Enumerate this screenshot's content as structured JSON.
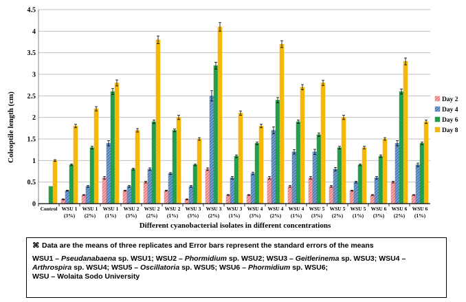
{
  "chart_data": {
    "type": "bar",
    "xlabel": "Different cyanobacterial isolates in different concentrations",
    "ylabel": "Coleoptile length (cm)",
    "ylim": [
      0,
      4.5
    ],
    "yticks": [
      "0",
      "0.5",
      "1",
      "1.5",
      "2",
      "2.5",
      "3",
      "3.5",
      "4",
      "4.5"
    ],
    "categories": [
      [
        "Control"
      ],
      [
        "WSU 1",
        "(3%)"
      ],
      [
        "WSU 1",
        "(2%)"
      ],
      [
        "WSU 1",
        "(1%)"
      ],
      [
        "WSU 2",
        "(3%)"
      ],
      [
        "WSU 2",
        "(2%)"
      ],
      [
        "WSU 2",
        "(1%)"
      ],
      [
        "WSU 3",
        "(3%)"
      ],
      [
        "WSU 3",
        "(2%)"
      ],
      [
        "WSU 3",
        "(1%)"
      ],
      [
        "WSU 4",
        "(3%)"
      ],
      [
        "WSU 4",
        "(2%)"
      ],
      [
        "WSU 4",
        "(1%)"
      ],
      [
        "WSU 5",
        "(3%)"
      ],
      [
        "WSU 5",
        "(2%)"
      ],
      [
        "WSU 5",
        "(1%)"
      ],
      [
        "WSU 6",
        "(3%)"
      ],
      [
        "WSU 6",
        "(2%)"
      ],
      [
        "WSU 6",
        "(1%)"
      ]
    ],
    "series": [
      {
        "name": "Day 2",
        "color": "#f08080",
        "values": [
          0,
          0.1,
          0.2,
          0.6,
          0.3,
          0.5,
          0.3,
          0.1,
          0.8,
          0.2,
          0.2,
          0.6,
          0.4,
          0.6,
          0.4,
          0.3,
          0.2,
          0.5,
          0.2
        ],
        "errors": [
          0,
          0.01,
          0.01,
          0.03,
          0.01,
          0.02,
          0.01,
          0.01,
          0.03,
          0.01,
          0.01,
          0.03,
          0.02,
          0.03,
          0.02,
          0.01,
          0.01,
          0.02,
          0.01
        ]
      },
      {
        "name": "Day 4",
        "color": "#4f81bd",
        "values": [
          0,
          0.3,
          0.4,
          1.4,
          0.4,
          0.8,
          0.7,
          0.4,
          2.5,
          0.6,
          0.7,
          1.7,
          1.2,
          1.2,
          0.8,
          0.5,
          0.6,
          1.4,
          0.9
        ],
        "errors": [
          0,
          0.01,
          0.02,
          0.06,
          0.02,
          0.03,
          0.02,
          0.02,
          0.12,
          0.03,
          0.03,
          0.08,
          0.05,
          0.06,
          0.04,
          0.02,
          0.03,
          0.06,
          0.04
        ]
      },
      {
        "name": "Day 6",
        "color": "#22a550",
        "values": [
          0.4,
          0.9,
          1.3,
          2.6,
          0.8,
          1.9,
          1.7,
          0.9,
          3.2,
          1.1,
          1.4,
          2.4,
          1.9,
          1.6,
          1.3,
          0.9,
          1.1,
          2.6,
          1.4
        ],
        "errors": [
          0,
          0.02,
          0.03,
          0.07,
          0.02,
          0.04,
          0.03,
          0.02,
          0.08,
          0.03,
          0.03,
          0.06,
          0.04,
          0.04,
          0.03,
          0.02,
          0.03,
          0.06,
          0.03
        ]
      },
      {
        "name": "Day 8",
        "color": "#f4b400",
        "values": [
          1.0,
          1.8,
          2.2,
          2.8,
          1.7,
          3.8,
          2.0,
          1.5,
          4.1,
          2.1,
          1.8,
          3.7,
          2.7,
          2.8,
          2.0,
          1.3,
          1.5,
          3.3,
          1.9
        ],
        "errors": [
          0.02,
          0.04,
          0.05,
          0.07,
          0.04,
          0.09,
          0.05,
          0.03,
          0.1,
          0.05,
          0.04,
          0.08,
          0.06,
          0.06,
          0.05,
          0.03,
          0.03,
          0.08,
          0.04
        ]
      }
    ],
    "legend_position": "right",
    "grid": "horizontal"
  },
  "footnote": {
    "symbol": "⌘",
    "line1": "Data are the means of three replicates and Error bars represent the standard errors of the means",
    "abbreviations": [
      {
        "code": "WSU1 – ",
        "genus": "Pseudanabaena",
        "rest": " sp. WSU1; "
      },
      {
        "code": "WSU2 – ",
        "genus": "Phormidium",
        "rest": " sp. WSU2; "
      },
      {
        "code": "WSU3 – ",
        "genus": "Geitlerinema",
        "rest": " sp. WSU3; "
      },
      {
        "code": "WSU4 – ",
        "genus": "Arthrospira",
        "rest": " sp. WSU4; "
      },
      {
        "code": "WSU5 – ",
        "genus": "Oscillatoria",
        "rest": " sp. WSU5; "
      },
      {
        "code": "WSU6 – ",
        "genus": "Phormidium",
        "rest": " sp. WSU6; "
      }
    ],
    "university": "WSU – Wolaita Sodo University"
  }
}
